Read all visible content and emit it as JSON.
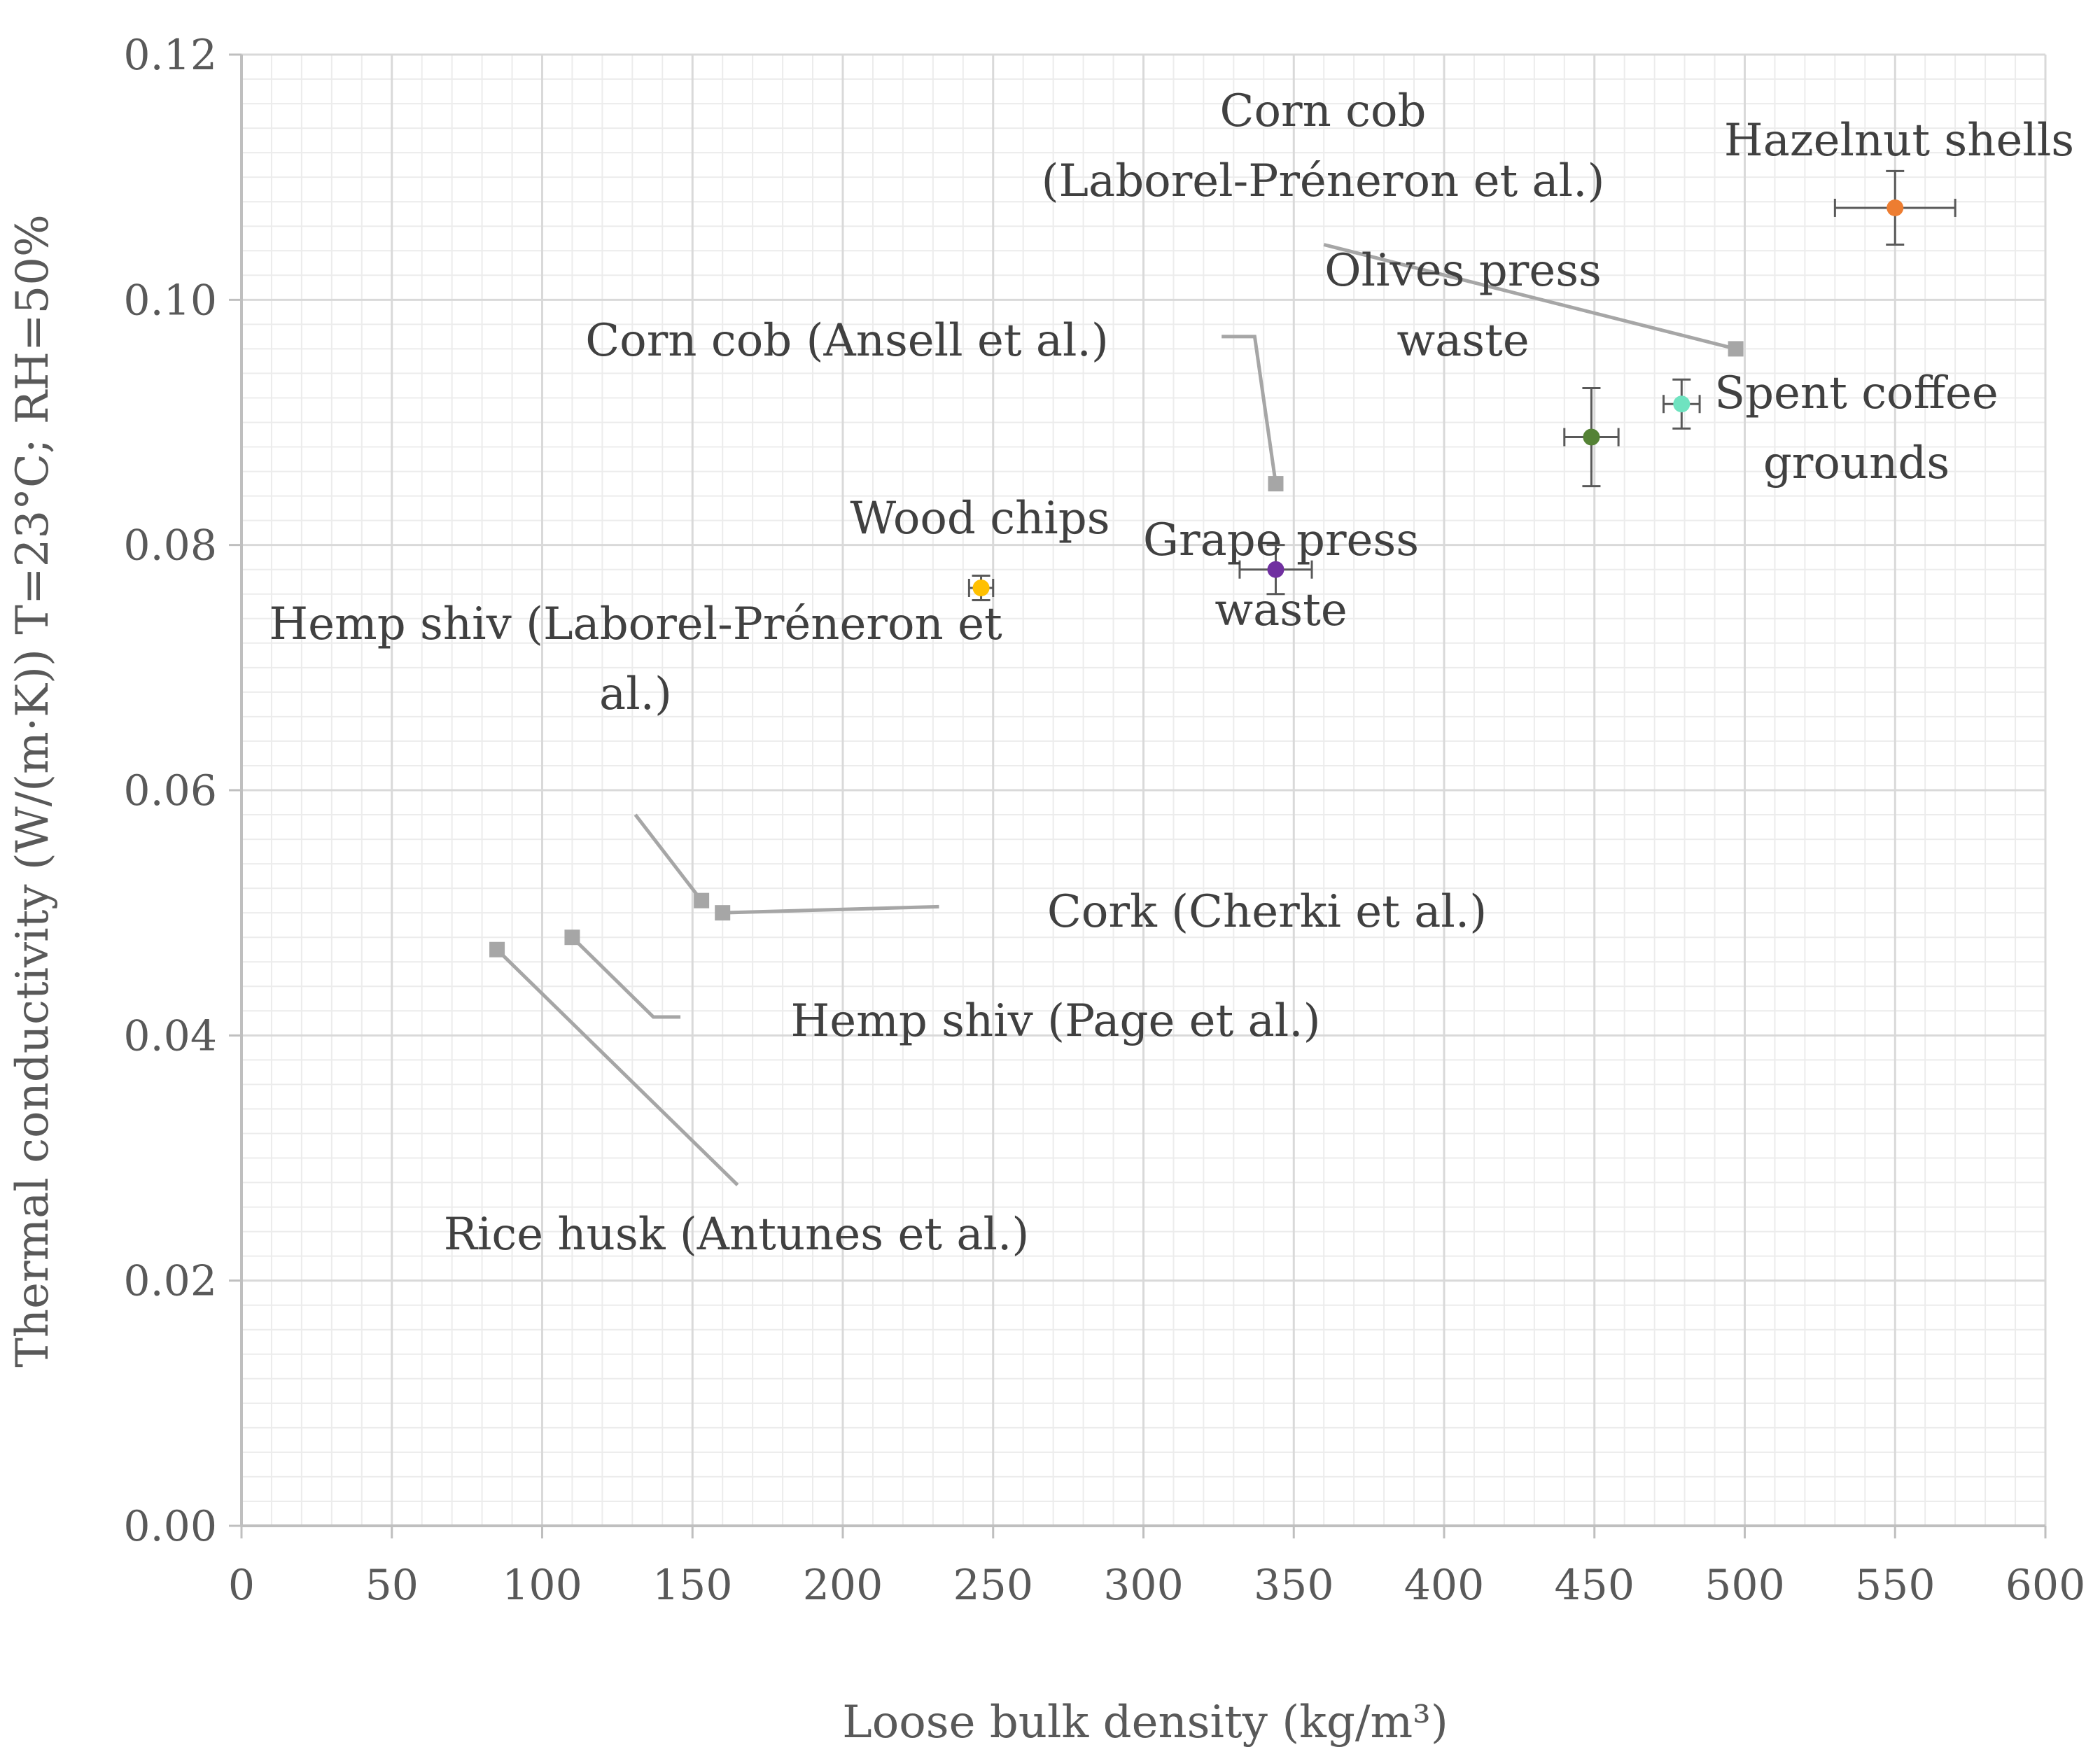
{
  "chart_data": {
    "type": "scatter",
    "title": "",
    "xlabel": "Loose bulk density (kg/m³)",
    "ylabel": "Thermal conductivity (W/(m·K)) T=23°C; RH=50%",
    "xlim": [
      0,
      600
    ],
    "ylim": [
      0,
      0.12
    ],
    "x_ticks": [
      "0",
      "50",
      "100",
      "150",
      "200",
      "250",
      "300",
      "350",
      "400",
      "450",
      "500",
      "550",
      "600"
    ],
    "y_ticks": [
      "0.00",
      "0.02",
      "0.04",
      "0.06",
      "0.08",
      "0.10",
      "0.12"
    ],
    "grid": true,
    "series": [
      {
        "name": "Hazelnut shells",
        "kind": "measured",
        "color": "#ED7D31",
        "x": 550,
        "y": 0.1075,
        "x_err": 20,
        "y_err": 0.003,
        "label": "Hazelnut shells"
      },
      {
        "name": "Spent coffee grounds",
        "kind": "measured",
        "color": "#6FE3C0",
        "x": 479,
        "y": 0.0915,
        "x_err": 6,
        "y_err": 0.002,
        "label": "Spent coffee grounds"
      },
      {
        "name": "Olives press waste",
        "kind": "measured",
        "color": "#548235",
        "x": 449,
        "y": 0.0888,
        "x_err": 9,
        "y_err": 0.004,
        "label": "Olives press waste"
      },
      {
        "name": "Grape press waste",
        "kind": "measured",
        "color": "#7030A0",
        "x": 344,
        "y": 0.078,
        "x_err": 12,
        "y_err": 0.002,
        "label": "Grape press waste"
      },
      {
        "name": "Wood chips",
        "kind": "measured",
        "color": "#FFC000",
        "x": 246,
        "y": 0.0765,
        "x_err": 4,
        "y_err": 0.001,
        "label": "Wood chips"
      },
      {
        "name": "Corn cob (Laborel-Préneron et al.)",
        "kind": "literature",
        "color": "#A6A6A6",
        "x": 497,
        "y": 0.096,
        "label": "Corn cob (Laborel-Préneron et al.)"
      },
      {
        "name": "Corn cob (Ansell et al.)",
        "kind": "literature",
        "color": "#A6A6A6",
        "x": 344,
        "y": 0.085,
        "label": "Corn cob (Ansell et al.)"
      },
      {
        "name": "Hemp shiv (Laborel-Préneron et al.)",
        "kind": "literature",
        "color": "#A6A6A6",
        "x": 153,
        "y": 0.051,
        "label": "Hemp shiv (Laborel-Préneron et al.)"
      },
      {
        "name": "Cork (Cherki et al.)",
        "kind": "literature",
        "color": "#A6A6A6",
        "x": 160,
        "y": 0.05,
        "label": "Cork (Cherki et al.)"
      },
      {
        "name": "Hemp shiv (Page et al.)",
        "kind": "literature",
        "color": "#A6A6A6",
        "x": 110,
        "y": 0.048,
        "label": "Hemp shiv (Page et al.)"
      },
      {
        "name": "Rice husk (Antunes et al.)",
        "kind": "literature",
        "color": "#A6A6A6",
        "x": 85,
        "y": 0.047,
        "label": "Rice husk (Antunes et al.)"
      }
    ]
  }
}
